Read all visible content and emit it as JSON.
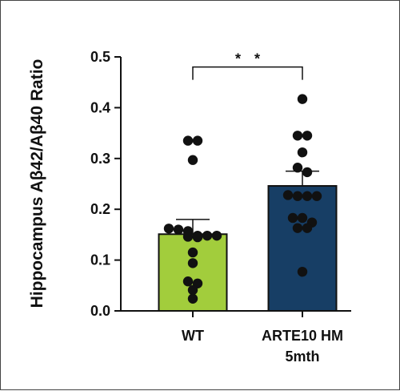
{
  "chart_data": {
    "type": "bar",
    "ylabel": "Hippocampus Aβ42/Aβ40 Ratio",
    "xlabel": "",
    "ylim": [
      0,
      0.5
    ],
    "yticks": [
      0.0,
      0.1,
      0.2,
      0.3,
      0.4,
      0.5
    ],
    "ytick_labels": [
      "0.0",
      "0.1",
      "0.2",
      "0.3",
      "0.4",
      "0.5"
    ],
    "categories": [
      {
        "label_line1": "WT",
        "label_line2": ""
      },
      {
        "label_line1": "ARTE10 HM",
        "label_line2": "5mth"
      }
    ],
    "bars": [
      {
        "value": 0.151,
        "sem": 0.029,
        "color": "#a2cd3c",
        "points": [
          0.335,
          0.335,
          0.297,
          0.16,
          0.162,
          0.148,
          0.145,
          0.148,
          0.148,
          0.146,
          0.157,
          0.115,
          0.094,
          0.054,
          0.058,
          0.041,
          0.024
        ]
      },
      {
        "value": 0.246,
        "sem": 0.029,
        "color": "#173e65",
        "points": [
          0.417,
          0.345,
          0.345,
          0.312,
          0.282,
          0.273,
          0.226,
          0.226,
          0.226,
          0.228,
          0.183,
          0.183,
          0.174,
          0.163,
          0.163,
          0.077
        ]
      }
    ],
    "significance": {
      "label": "* *",
      "between": [
        0,
        1
      ],
      "y": 0.48
    },
    "grid": false,
    "legend": "none"
  }
}
